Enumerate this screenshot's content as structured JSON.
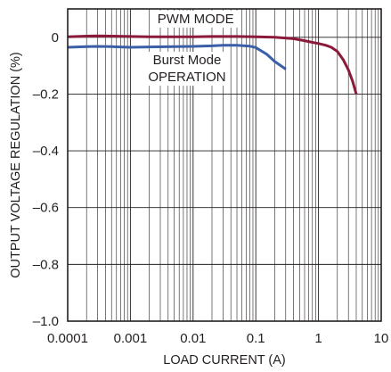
{
  "chart_data": {
    "type": "line",
    "xlabel": "LOAD CURRENT (A)",
    "ylabel": "OUTPUT VOLTAGE REGULATION (%)",
    "x_scale": "log",
    "xlim": [
      0.0001,
      10
    ],
    "ylim": [
      -1.0,
      0.1
    ],
    "x_ticks": [
      {
        "value": 0.0001,
        "label": "0.0001"
      },
      {
        "value": 0.001,
        "label": "0.001"
      },
      {
        "value": 0.01,
        "label": "0.01"
      },
      {
        "value": 0.1,
        "label": "0.1"
      },
      {
        "value": 1,
        "label": "1"
      },
      {
        "value": 10,
        "label": "10"
      }
    ],
    "y_ticks": [
      {
        "value": 0,
        "label": "0"
      },
      {
        "value": -0.2,
        "label": "–0.2"
      },
      {
        "value": -0.4,
        "label": "–0.4"
      },
      {
        "value": -0.6,
        "label": "–0.6"
      },
      {
        "value": -0.8,
        "label": "–0.8"
      },
      {
        "value": -1.0,
        "label": "–1.0"
      }
    ],
    "grid": true,
    "series": [
      {
        "color": "#8b1a3a",
        "x": [
          0.0001,
          0.0002,
          0.0003,
          0.0005,
          0.001,
          0.002,
          0.005,
          0.01,
          0.02,
          0.05,
          0.1,
          0.2,
          0.4,
          0.6,
          0.8,
          1.0,
          1.3,
          1.6,
          2.0,
          2.5,
          3.0,
          3.5,
          4.0
        ],
        "y": [
          0.002,
          0.004,
          0.005,
          0.004,
          0.003,
          0.002,
          0.002,
          0.002,
          0.003,
          0.003,
          0.002,
          0.0,
          -0.005,
          -0.012,
          -0.018,
          -0.022,
          -0.028,
          -0.035,
          -0.05,
          -0.08,
          -0.115,
          -0.155,
          -0.2
        ]
      },
      {
        "color": "#3a5ea8",
        "x": [
          0.0001,
          0.0002,
          0.0003,
          0.0005,
          0.001,
          0.002,
          0.005,
          0.01,
          0.02,
          0.03,
          0.05,
          0.08,
          0.1,
          0.15,
          0.2,
          0.3
        ],
        "y": [
          -0.035,
          -0.033,
          -0.032,
          -0.033,
          -0.035,
          -0.034,
          -0.033,
          -0.032,
          -0.03,
          -0.028,
          -0.028,
          -0.031,
          -0.036,
          -0.06,
          -0.085,
          -0.112
        ]
      }
    ],
    "annotations": [
      {
        "text": "PWM MODE"
      },
      {
        "text": "Burst Mode"
      },
      {
        "text": "OPERATION"
      }
    ]
  }
}
